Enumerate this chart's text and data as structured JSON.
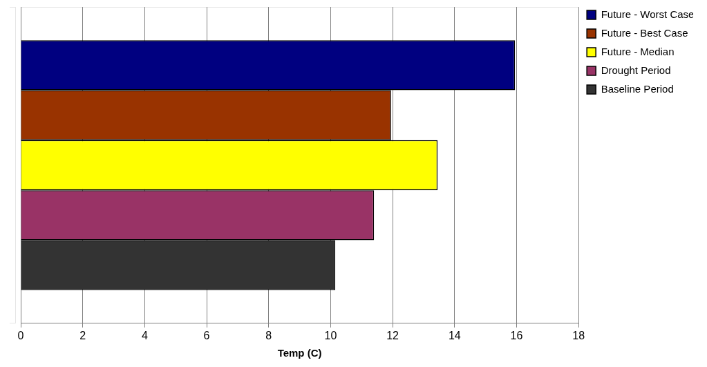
{
  "chart_data": {
    "type": "bar",
    "orientation": "horizontal",
    "xlabel": "Temp (C)",
    "categories": [
      null
    ],
    "series": [
      {
        "name": "Future - Worst Case",
        "color": "#000080",
        "values": [
          15.95
        ]
      },
      {
        "name": "Future - Best Case",
        "color": "#993300",
        "values": [
          11.95
        ]
      },
      {
        "name": "Future - Median",
        "color": "#ffff00",
        "values": [
          13.45
        ]
      },
      {
        "name": "Drought Period",
        "color": "#993366",
        "values": [
          11.4
        ]
      },
      {
        "name": "Baseline Period",
        "color": "#333333",
        "values": [
          10.15
        ]
      }
    ],
    "xlim": [
      0,
      18
    ],
    "xticks": [
      0,
      2,
      4,
      6,
      8,
      10,
      12,
      14,
      16,
      18
    ],
    "grid": "x",
    "legend": "right"
  }
}
